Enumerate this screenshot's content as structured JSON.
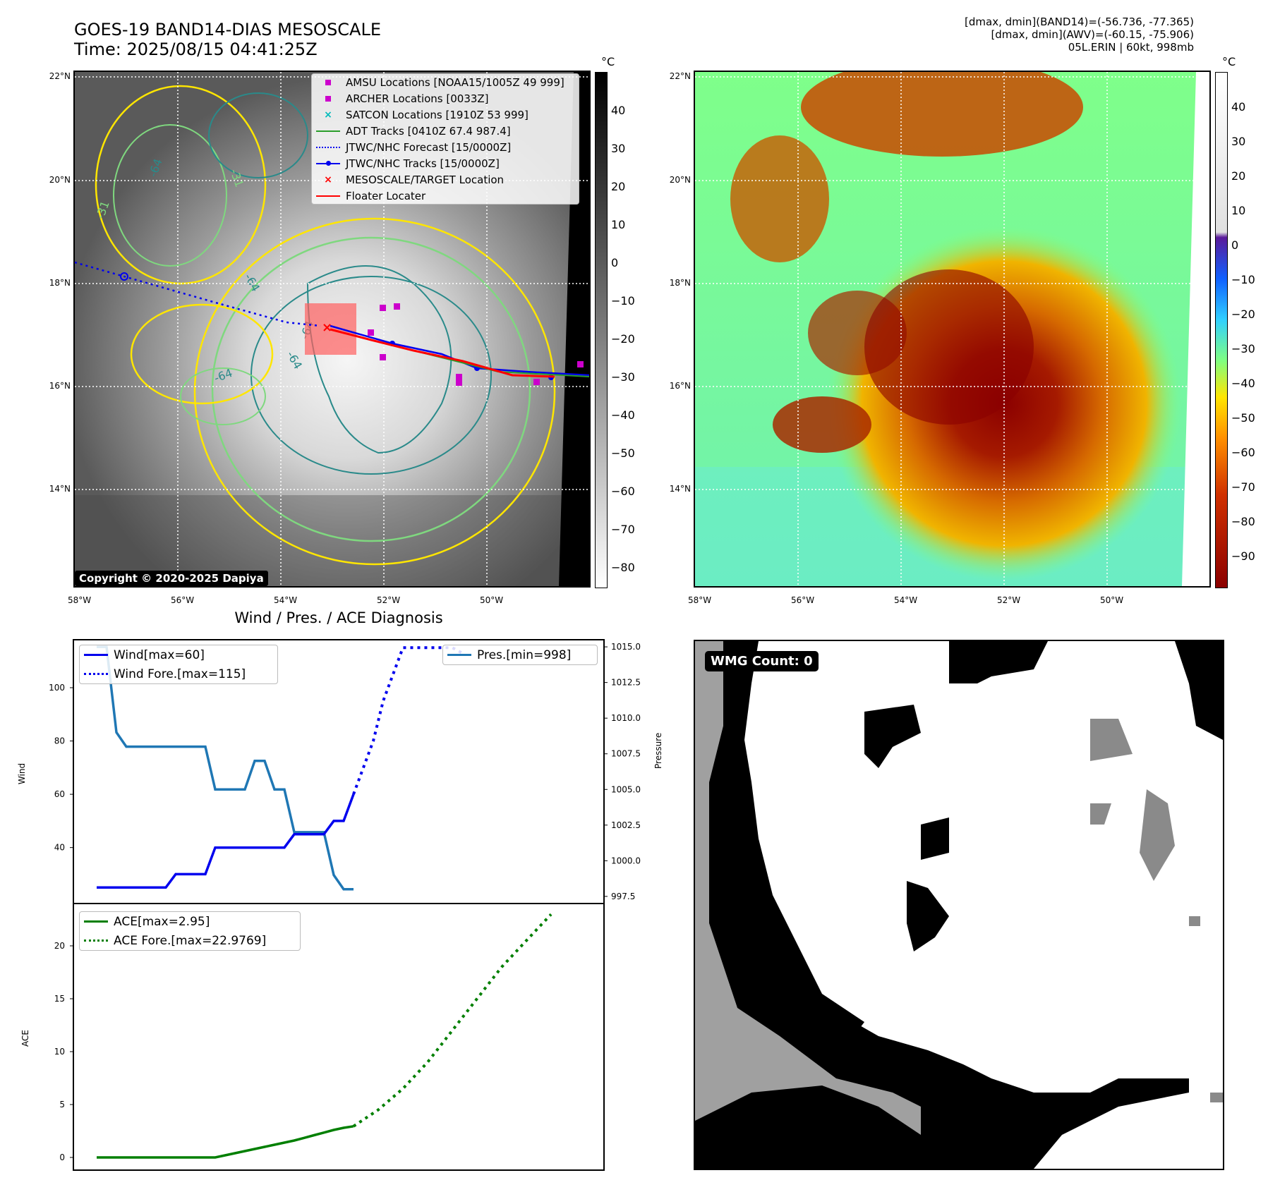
{
  "header": {
    "title_line1": "GOES-19 BAND14-DIAS MESOSCALE",
    "title_line2": "Time: 2025/08/15 04:41:25Z",
    "info_line1": "[dmax, dmin](BAND14)=(-56.736, -77.365)",
    "info_line2": "[dmax, dmin](AWV)=(-60.15, -75.906)",
    "info_line3": "05L.ERIN | 60kt, 998mb"
  },
  "colors": {
    "wind": "#0000ee",
    "pressure": "#1f77b4",
    "ace": "#007f00",
    "floater": "#ff0000",
    "contour_yellow": "#ffe600",
    "contour_green": "#7fd87f",
    "contour_teal": "#2a8a8a"
  },
  "map_left": {
    "colorbar_unit": "°C",
    "colorbar_ticks": [
      "40",
      "30",
      "20",
      "10",
      "0",
      "−10",
      "−20",
      "−30",
      "−40",
      "−50",
      "−60",
      "−70",
      "−80"
    ],
    "lat_labels": [
      "22°N",
      "20°N",
      "18°N",
      "16°N",
      "14°N"
    ],
    "lon_labels": [
      "58°W",
      "56°W",
      "54°W",
      "52°W",
      "50°W"
    ],
    "copyright": "Copyright © 2020-2025 Dapiya",
    "contour_labels": [
      "-31",
      "-64",
      "-64",
      "-64",
      "-64",
      "-31",
      "-64"
    ],
    "legend": [
      {
        "label": "AMSU Locations [NOAA15/1005Z 49 999]",
        "icon": "magenta-square"
      },
      {
        "label": "ARCHER Locations [0033Z]",
        "icon": "magenta-square"
      },
      {
        "label": "SATCON Locations [1910Z 53 999]",
        "icon": "cyan-x"
      },
      {
        "label": "ADT Tracks [0410Z 67.4 987.4]",
        "icon": "green-line"
      },
      {
        "label": "JTWC/NHC Forecast [15/0000Z]",
        "icon": "blue-dotted-line"
      },
      {
        "label": "JTWC/NHC Tracks [15/0000Z]",
        "icon": "blue-line-dot"
      },
      {
        "label": "MESOSCALE/TARGET Location",
        "icon": "red-x"
      },
      {
        "label": "Floater Locater",
        "icon": "red-line"
      }
    ]
  },
  "map_right": {
    "colorbar_unit": "°C",
    "colorbar_ticks": [
      "40",
      "30",
      "20",
      "10",
      "0",
      "−10",
      "−20",
      "−30",
      "−40",
      "−50",
      "−60",
      "−70",
      "−80",
      "−90"
    ],
    "lat_labels": [
      "22°N",
      "20°N",
      "18°N",
      "16°N",
      "14°N"
    ],
    "lon_labels": [
      "58°W",
      "56°W",
      "54°W",
      "52°W",
      "50°W"
    ]
  },
  "wmg": {
    "badge": "WMG Count: 0"
  },
  "chart_data": [
    {
      "type": "line",
      "title": "Wind / Pres. / ACE Diagnosis",
      "ylabel": "Wind",
      "ylabel_right": "Pressure",
      "yticks": [
        "40",
        "60",
        "80",
        "100"
      ],
      "yticks_right": [
        "997.5",
        "1000.0",
        "1002.5",
        "1005.0",
        "1007.5",
        "1010.0",
        "1012.5",
        "1015.0"
      ],
      "ylim": [
        19,
        118
      ],
      "ylim_right": [
        997,
        1015.5
      ],
      "series": [
        {
          "name": "Wind[max=60]",
          "style": "solid",
          "values": [
            25,
            25,
            25,
            25,
            25,
            25,
            25,
            25,
            30,
            30,
            30,
            30,
            40,
            40,
            40,
            40,
            40,
            40,
            40,
            40,
            45,
            45,
            45,
            45,
            50,
            50,
            60
          ]
        },
        {
          "name": "Wind Fore.[max=115]",
          "style": "dotted",
          "values": [
            60,
            70,
            80,
            95,
            105,
            115,
            115,
            115,
            115,
            115,
            115,
            113
          ]
        },
        {
          "name": "Pres.[min=998]",
          "style": "solid",
          "values": [
            1015,
            1015,
            1009,
            1008,
            1008,
            1008,
            1008,
            1008,
            1008,
            1008,
            1008,
            1008,
            1005,
            1005,
            1005,
            1005,
            1007,
            1007,
            1005,
            1005,
            1002,
            1002,
            1002,
            1002,
            999,
            998,
            998
          ]
        }
      ]
    },
    {
      "type": "line",
      "ylabel": "ACE",
      "yticks": [
        "0",
        "5",
        "10",
        "15",
        "20"
      ],
      "ylim": [
        -1.2,
        24
      ],
      "series": [
        {
          "name": "ACE[max=2.95]",
          "style": "solid",
          "values": [
            0,
            0,
            0,
            0,
            0,
            0,
            0,
            0,
            0,
            0,
            0,
            0,
            0,
            0.2,
            0.4,
            0.6,
            0.8,
            1.0,
            1.2,
            1.4,
            1.6,
            1.85,
            2.1,
            2.35,
            2.6,
            2.8,
            2.95
          ]
        },
        {
          "name": "ACE Fore.[max=22.9769]",
          "style": "dotted",
          "values": [
            2.95,
            4.5,
            6.5,
            9,
            12,
            15,
            18,
            20.5,
            22.9769
          ]
        }
      ]
    }
  ]
}
